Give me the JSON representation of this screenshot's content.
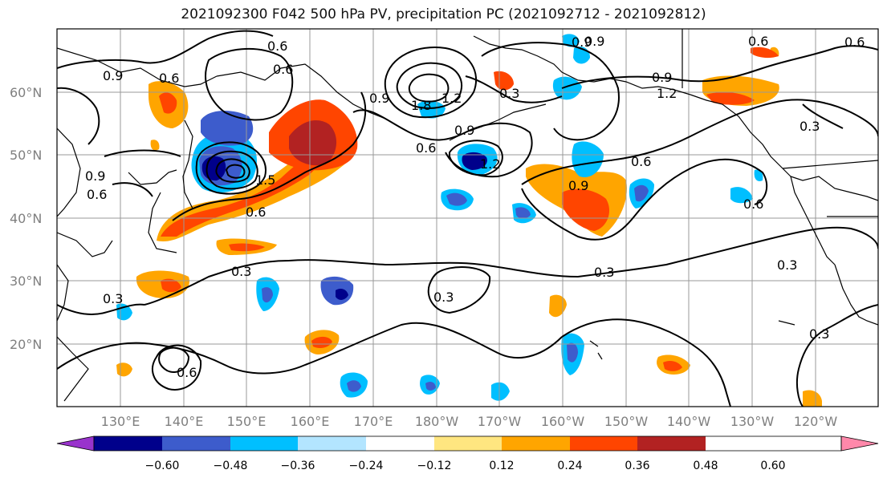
{
  "title": "2021092300 F042 500 hPa PV, precipitation PC (2021092712 - 2021092812)",
  "map": {
    "lat_labels": [
      "60°N",
      "50°N",
      "40°N",
      "30°N",
      "20°N"
    ],
    "lon_labels": [
      "130°E",
      "140°E",
      "150°E",
      "160°E",
      "170°E",
      "180°W",
      "170°W",
      "160°W",
      "150°W",
      "140°W",
      "130°W",
      "120°W"
    ],
    "contour_labels": [
      "0.6",
      "0.9",
      "0.6",
      "0.9",
      "0.6",
      "0.6",
      "0.9",
      "1.2",
      "0.3",
      "0.9",
      "1.2",
      "0.6",
      "0.9",
      "0.6",
      "0.9",
      "0.6",
      "0.3",
      "0.3",
      "0.3",
      "0.3",
      "0.3",
      "0.3",
      "0.6",
      "0.6",
      "0.3",
      "0.6",
      "1.2",
      "0.9",
      "0.9",
      "1.8",
      "1.5",
      "0.6"
    ]
  },
  "colorbar": {
    "tick_labels": [
      "−0.60",
      "−0.48",
      "−0.36",
      "−0.24",
      "−0.12",
      "0.12",
      "0.24",
      "0.36",
      "0.48",
      "0.60"
    ],
    "colors": [
      "#9933cc",
      "#00008b",
      "#3d5ccc",
      "#00bfff",
      "#b3e5ff",
      "#ffffff",
      "#ffe680",
      "#ffa500",
      "#ff4500",
      "#b22222",
      "#ff88aa"
    ]
  }
}
